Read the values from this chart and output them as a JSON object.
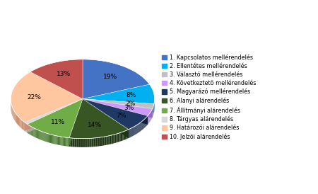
{
  "labels": [
    "1. Kapcsolatos mellérendelés",
    "2. Ellentétes mellérendelés",
    "3. Választó mellérendelés",
    "4. Következtetö mellérendelés",
    "5. Magyarázó mellérendelés",
    "6. Alanyi alárendelés",
    "7. Állítmányi alárendelés",
    "8. Tárgyas alárendelés",
    "9. Határozói alárendelés",
    "10. Jelzöi alárendelés"
  ],
  "values": [
    19,
    8,
    2,
    3,
    7,
    14,
    11,
    1,
    22,
    13
  ],
  "colors": [
    "#4472C4",
    "#00B0F0",
    "#C0C0C0",
    "#CC99FF",
    "#1F3864",
    "#375623",
    "#70AD47",
    "#D9D9D9",
    "#FFC7A0",
    "#C0504D"
  ],
  "dark_colors": [
    "#2E4F8A",
    "#007AB8",
    "#888888",
    "#9966CC",
    "#0D1F3C",
    "#1E3412",
    "#4A7A30",
    "#AAAAAA",
    "#CC9070",
    "#8B2020"
  ],
  "pct_labels": [
    "19%",
    "8%",
    "2%",
    "3%",
    "7%",
    "14%",
    "11%",
    "1%",
    "22%",
    "13%"
  ],
  "startangle": 90,
  "depth": 0.12,
  "background_color": "#ffffff"
}
